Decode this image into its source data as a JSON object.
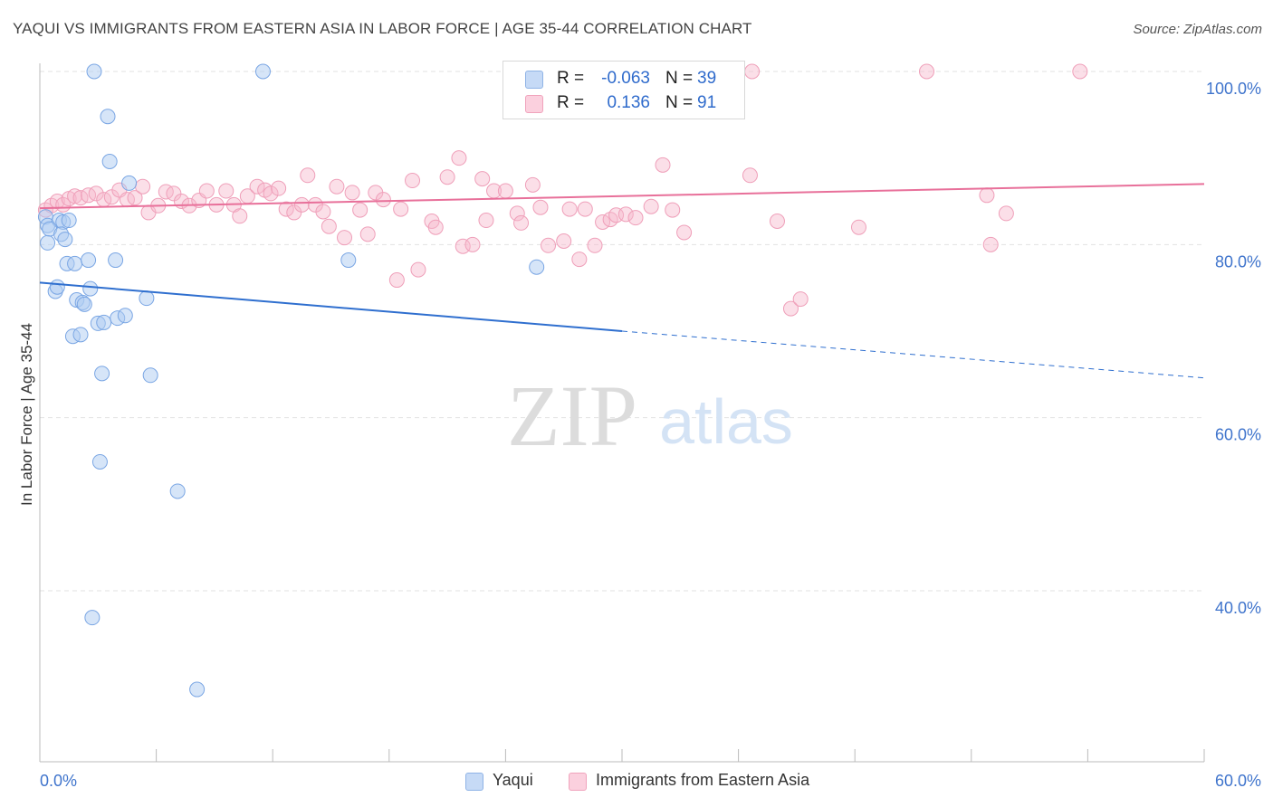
{
  "header": {
    "title": "YAQUI VS IMMIGRANTS FROM EASTERN ASIA IN LABOR FORCE | AGE 35-44 CORRELATION CHART",
    "source": "Source: ZipAtlas.com"
  },
  "watermark": {
    "zip": "ZIP",
    "atlas": "atlas"
  },
  "legend": {
    "rows": [
      {
        "r_label": "R =",
        "r_value": "-0.063",
        "n_label": "N =",
        "n_value": "39",
        "color": "#aecbf2"
      },
      {
        "r_label": "R =",
        "r_value": "0.136",
        "n_label": "N =",
        "n_value": "91",
        "color": "#f7b8cb"
      }
    ]
  },
  "chart_data": {
    "type": "scatter",
    "title": "YAQUI VS IMMIGRANTS FROM EASTERN ASIA IN LABOR FORCE | AGE 35-44 CORRELATION CHART",
    "xlabel": "",
    "ylabel": "In Labor Force | Age 35-44",
    "xlim": [
      0,
      60
    ],
    "ylim": [
      20,
      102
    ],
    "x_tick_labels": [
      "0.0%",
      "60.0%"
    ],
    "y_ticks": [
      40,
      60,
      80,
      100
    ],
    "y_tick_labels": [
      "40.0%",
      "60.0%",
      "80.0%",
      "100.0%"
    ],
    "grid": true,
    "colors": {
      "yaqui": "#6fa0e8",
      "immigrants": "#ec85a6",
      "yaqui_line": "#2f6fcf",
      "immigrants_line": "#e8709a"
    },
    "series": [
      {
        "name": "Yaqui",
        "trend": {
          "x0": 0,
          "y0": 75.6,
          "x1": 30,
          "y1": 70.0,
          "x_end": 60,
          "y_end": 64.6
        },
        "points": [
          [
            2.8,
            100
          ],
          [
            11.5,
            100
          ],
          [
            3.5,
            94.8
          ],
          [
            3.6,
            89.6
          ],
          [
            4.6,
            87.1
          ],
          [
            0.3,
            83.2
          ],
          [
            0.4,
            82.2
          ],
          [
            1.0,
            82.8
          ],
          [
            1.2,
            82.6
          ],
          [
            1.5,
            82.8
          ],
          [
            0.5,
            81.8
          ],
          [
            1.1,
            81.2
          ],
          [
            1.3,
            80.6
          ],
          [
            0.4,
            80.2
          ],
          [
            1.4,
            77.8
          ],
          [
            1.8,
            77.8
          ],
          [
            2.5,
            78.2
          ],
          [
            3.9,
            78.2
          ],
          [
            15.9,
            78.2
          ],
          [
            25.6,
            77.4
          ],
          [
            0.8,
            74.6
          ],
          [
            0.9,
            75.1
          ],
          [
            2.6,
            74.9
          ],
          [
            5.5,
            73.8
          ],
          [
            1.9,
            73.6
          ],
          [
            2.2,
            73.3
          ],
          [
            2.3,
            73.1
          ],
          [
            3.0,
            70.9
          ],
          [
            3.3,
            71.0
          ],
          [
            4.0,
            71.5
          ],
          [
            4.4,
            71.8
          ],
          [
            1.7,
            69.4
          ],
          [
            2.1,
            69.6
          ],
          [
            3.2,
            65.1
          ],
          [
            5.7,
            64.9
          ],
          [
            3.1,
            54.9
          ],
          [
            7.1,
            51.5
          ],
          [
            2.7,
            36.9
          ],
          [
            8.1,
            28.6
          ]
        ]
      },
      {
        "name": "Immigrants from Eastern Asia",
        "trend": {
          "x0": 0,
          "y0": 84.2,
          "x1": 60,
          "y1": 87.0
        },
        "points": [
          [
            0.3,
            84.0
          ],
          [
            0.6,
            84.5
          ],
          [
            0.9,
            85.0
          ],
          [
            1.2,
            84.6
          ],
          [
            1.5,
            85.3
          ],
          [
            1.8,
            85.6
          ],
          [
            2.1,
            85.4
          ],
          [
            2.5,
            85.7
          ],
          [
            2.9,
            85.9
          ],
          [
            3.3,
            85.2
          ],
          [
            3.7,
            85.5
          ],
          [
            4.1,
            86.3
          ],
          [
            4.5,
            85.2
          ],
          [
            4.9,
            85.4
          ],
          [
            5.3,
            86.7
          ],
          [
            5.6,
            83.7
          ],
          [
            6.1,
            84.5
          ],
          [
            6.5,
            86.1
          ],
          [
            6.9,
            85.9
          ],
          [
            7.3,
            85.0
          ],
          [
            7.7,
            84.5
          ],
          [
            8.2,
            85.1
          ],
          [
            8.6,
            86.2
          ],
          [
            9.1,
            84.6
          ],
          [
            9.6,
            86.2
          ],
          [
            10.0,
            84.6
          ],
          [
            10.3,
            83.3
          ],
          [
            10.7,
            85.6
          ],
          [
            11.2,
            86.7
          ],
          [
            11.6,
            86.3
          ],
          [
            11.9,
            85.9
          ],
          [
            12.3,
            86.5
          ],
          [
            12.7,
            84.1
          ],
          [
            13.1,
            83.7
          ],
          [
            13.5,
            84.6
          ],
          [
            13.8,
            88.0
          ],
          [
            14.2,
            84.6
          ],
          [
            14.6,
            83.8
          ],
          [
            14.9,
            82.1
          ],
          [
            15.3,
            86.7
          ],
          [
            15.7,
            80.8
          ],
          [
            16.1,
            86.0
          ],
          [
            16.5,
            84.0
          ],
          [
            16.9,
            81.2
          ],
          [
            17.3,
            86.0
          ],
          [
            17.7,
            85.2
          ],
          [
            18.4,
            75.9
          ],
          [
            18.6,
            84.1
          ],
          [
            19.2,
            87.4
          ],
          [
            19.5,
            77.1
          ],
          [
            20.2,
            82.7
          ],
          [
            20.4,
            82.0
          ],
          [
            21.0,
            87.8
          ],
          [
            21.6,
            90.0
          ],
          [
            21.8,
            79.8
          ],
          [
            22.3,
            80.0
          ],
          [
            22.8,
            87.6
          ],
          [
            23.0,
            82.8
          ],
          [
            23.4,
            86.2
          ],
          [
            24.0,
            86.2
          ],
          [
            24.6,
            83.6
          ],
          [
            24.8,
            82.5
          ],
          [
            25.4,
            86.9
          ],
          [
            25.8,
            84.3
          ],
          [
            26.2,
            79.9
          ],
          [
            27.0,
            80.4
          ],
          [
            27.3,
            84.1
          ],
          [
            27.8,
            78.3
          ],
          [
            28.1,
            84.1
          ],
          [
            28.6,
            79.9
          ],
          [
            29.0,
            82.6
          ],
          [
            29.4,
            82.9
          ],
          [
            29.7,
            83.4
          ],
          [
            30.2,
            83.5
          ],
          [
            30.7,
            83.1
          ],
          [
            32.1,
            89.2
          ],
          [
            32.6,
            84.0
          ],
          [
            33.2,
            81.4
          ],
          [
            34.0,
            100
          ],
          [
            36.7,
            100
          ],
          [
            36.6,
            88.0
          ],
          [
            38.0,
            82.7
          ],
          [
            38.7,
            72.6
          ],
          [
            39.2,
            73.7
          ],
          [
            42.2,
            82.0
          ],
          [
            45.7,
            100
          ],
          [
            48.8,
            85.7
          ],
          [
            49.0,
            80.0
          ],
          [
            49.8,
            83.6
          ],
          [
            53.6,
            100
          ],
          [
            31.5,
            84.4
          ]
        ]
      }
    ]
  },
  "bottom_legend": {
    "items": [
      "Yaqui",
      "Immigrants from Eastern Asia"
    ]
  }
}
